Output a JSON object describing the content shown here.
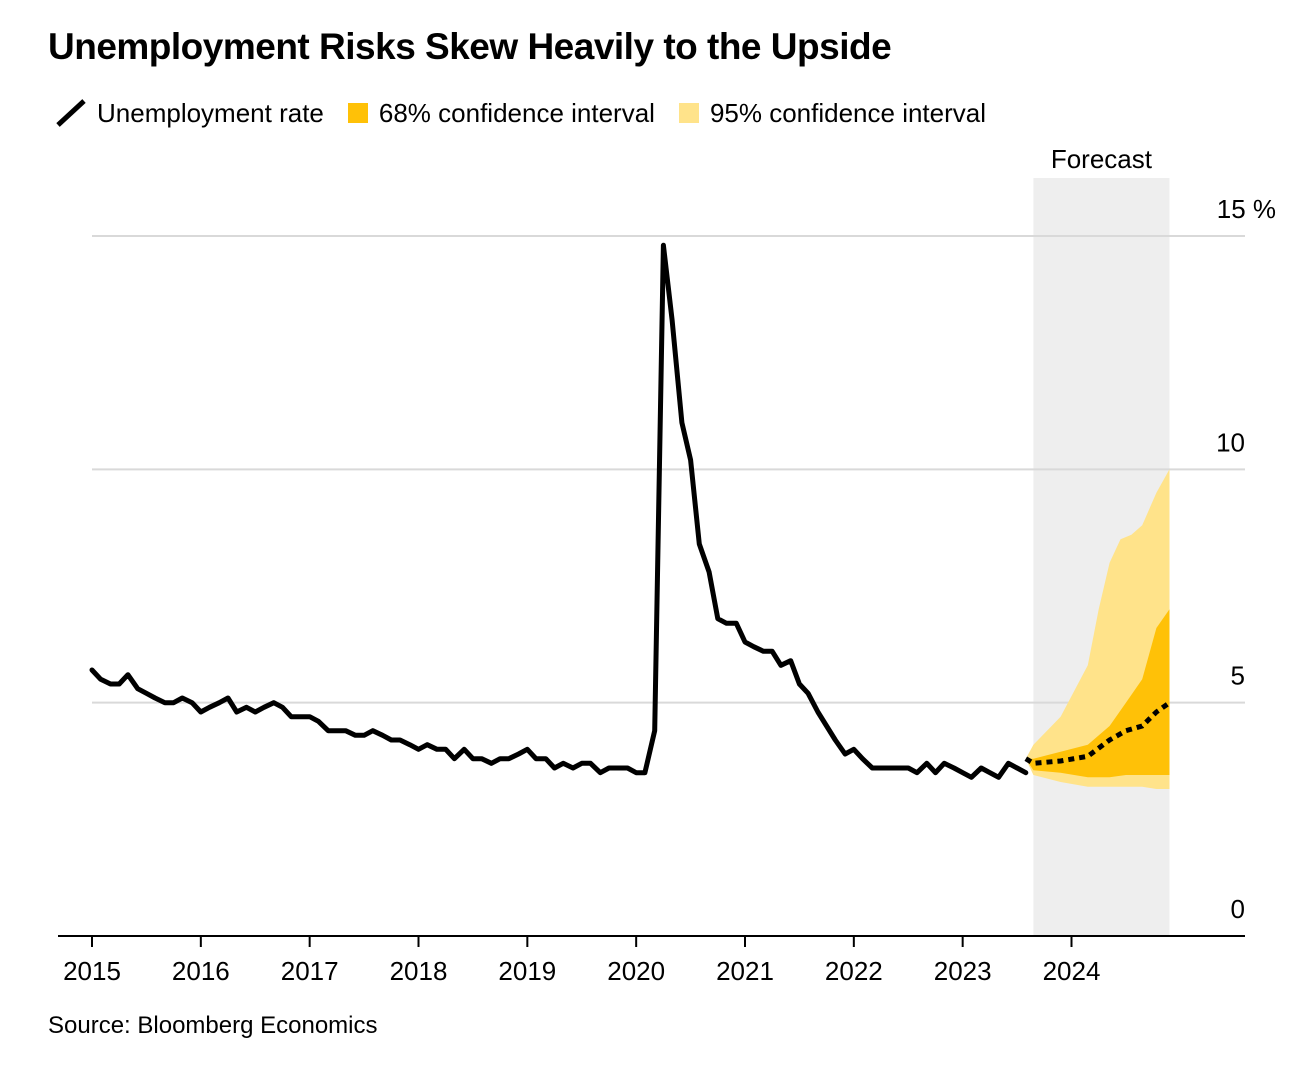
{
  "chart_data": {
    "type": "line",
    "title": "Unemployment Risks Skew Heavily to the Upside",
    "legend": [
      {
        "label": "Unemployment rate",
        "kind": "line",
        "color": "#000000"
      },
      {
        "label": "68% confidence interval",
        "kind": "swatch",
        "color": "#FFC107"
      },
      {
        "label": "95% confidence interval",
        "kind": "swatch",
        "color": "#FFE38A"
      }
    ],
    "forecast_label": "Forecast",
    "forecast_range": [
      2023.65,
      2024.9
    ],
    "xlim": [
      2014.7,
      2025.6
    ],
    "ylim": [
      0,
      15
    ],
    "x_ticks": [
      2015,
      2016,
      2017,
      2018,
      2019,
      2020,
      2021,
      2022,
      2023,
      2024
    ],
    "x_tick_labels": [
      "2015",
      "2016",
      "2017",
      "2018",
      "2019",
      "2020",
      "2021",
      "2022",
      "2023",
      "2024"
    ],
    "y_ticks": [
      0,
      5,
      10,
      15
    ],
    "y_tick_labels": [
      "0",
      "5",
      "10",
      "15 %"
    ],
    "grid": true,
    "source": "Source: Bloomberg Economics",
    "colors": {
      "line": "#000000",
      "ci68": "#FFC107",
      "ci95": "#FFE38A",
      "forecast_bg": "#EEEEEE",
      "grid": "#D9D9D9",
      "axis": "#000000"
    },
    "series": [
      {
        "name": "Unemployment rate",
        "x": [
          2015.0,
          2015.08,
          2015.17,
          2015.25,
          2015.33,
          2015.42,
          2015.5,
          2015.58,
          2015.67,
          2015.75,
          2015.83,
          2015.92,
          2016.0,
          2016.08,
          2016.17,
          2016.25,
          2016.33,
          2016.42,
          2016.5,
          2016.58,
          2016.67,
          2016.75,
          2016.83,
          2016.92,
          2017.0,
          2017.08,
          2017.17,
          2017.25,
          2017.33,
          2017.42,
          2017.5,
          2017.58,
          2017.67,
          2017.75,
          2017.83,
          2017.92,
          2018.0,
          2018.08,
          2018.17,
          2018.25,
          2018.33,
          2018.42,
          2018.5,
          2018.58,
          2018.67,
          2018.75,
          2018.83,
          2018.92,
          2019.0,
          2019.08,
          2019.17,
          2019.25,
          2019.33,
          2019.42,
          2019.5,
          2019.58,
          2019.67,
          2019.75,
          2019.83,
          2019.92,
          2020.0,
          2020.08,
          2020.17,
          2020.25,
          2020.33,
          2020.42,
          2020.5,
          2020.58,
          2020.67,
          2020.75,
          2020.83,
          2020.92,
          2021.0,
          2021.08,
          2021.17,
          2021.25,
          2021.33,
          2021.42,
          2021.5,
          2021.58,
          2021.67,
          2021.75,
          2021.83,
          2021.92,
          2022.0,
          2022.08,
          2022.17,
          2022.25,
          2022.33,
          2022.42,
          2022.5,
          2022.58,
          2022.67,
          2022.75,
          2022.83,
          2022.92,
          2023.0,
          2023.08,
          2023.17,
          2023.25,
          2023.33,
          2023.42,
          2023.5,
          2023.58
        ],
        "values": [
          5.7,
          5.5,
          5.4,
          5.4,
          5.6,
          5.3,
          5.2,
          5.1,
          5.0,
          5.0,
          5.1,
          5.0,
          4.8,
          4.9,
          5.0,
          5.1,
          4.8,
          4.9,
          4.8,
          4.9,
          5.0,
          4.9,
          4.7,
          4.7,
          4.7,
          4.6,
          4.4,
          4.4,
          4.4,
          4.3,
          4.3,
          4.4,
          4.3,
          4.2,
          4.2,
          4.1,
          4.0,
          4.1,
          4.0,
          4.0,
          3.8,
          4.0,
          3.8,
          3.8,
          3.7,
          3.8,
          3.8,
          3.9,
          4.0,
          3.8,
          3.8,
          3.6,
          3.7,
          3.6,
          3.7,
          3.7,
          3.5,
          3.6,
          3.6,
          3.6,
          3.5,
          3.5,
          4.4,
          14.8,
          13.2,
          11.0,
          10.2,
          8.4,
          7.8,
          6.8,
          6.7,
          6.7,
          6.3,
          6.2,
          6.1,
          6.1,
          5.8,
          5.9,
          5.4,
          5.2,
          4.8,
          4.5,
          4.2,
          3.9,
          4.0,
          3.8,
          3.6,
          3.6,
          3.6,
          3.6,
          3.6,
          3.5,
          3.7,
          3.5,
          3.7,
          3.6,
          3.5,
          3.4,
          3.6,
          3.5,
          3.4,
          3.7,
          3.6,
          3.5
        ]
      },
      {
        "name": "Forecast (median)",
        "style": "dotted",
        "x": [
          2023.58,
          2023.65,
          2023.9,
          2024.15,
          2024.35,
          2024.5,
          2024.65,
          2024.78,
          2024.9
        ],
        "values": [
          3.8,
          3.7,
          3.75,
          3.85,
          4.2,
          4.4,
          4.5,
          4.8,
          5.0
        ]
      },
      {
        "name": "68% confidence interval",
        "x": [
          2023.58,
          2023.65,
          2023.9,
          2024.15,
          2024.35,
          2024.5,
          2024.65,
          2024.78,
          2024.9
        ],
        "upper": [
          3.8,
          3.8,
          3.95,
          4.1,
          4.5,
          5.0,
          5.5,
          6.6,
          7.0
        ],
        "lower": [
          3.8,
          3.55,
          3.5,
          3.4,
          3.4,
          3.45,
          3.45,
          3.45,
          3.45
        ]
      },
      {
        "name": "95% confidence interval",
        "x": [
          2023.58,
          2023.65,
          2023.9,
          2024.15,
          2024.25,
          2024.35,
          2024.45,
          2024.55,
          2024.65,
          2024.78,
          2024.9
        ],
        "upper": [
          3.8,
          4.1,
          4.7,
          5.8,
          7.0,
          8.0,
          8.5,
          8.6,
          8.8,
          9.5,
          10.0
        ],
        "lower": [
          3.8,
          3.45,
          3.3,
          3.2,
          3.2,
          3.2,
          3.2,
          3.2,
          3.2,
          3.15,
          3.15
        ]
      }
    ]
  }
}
